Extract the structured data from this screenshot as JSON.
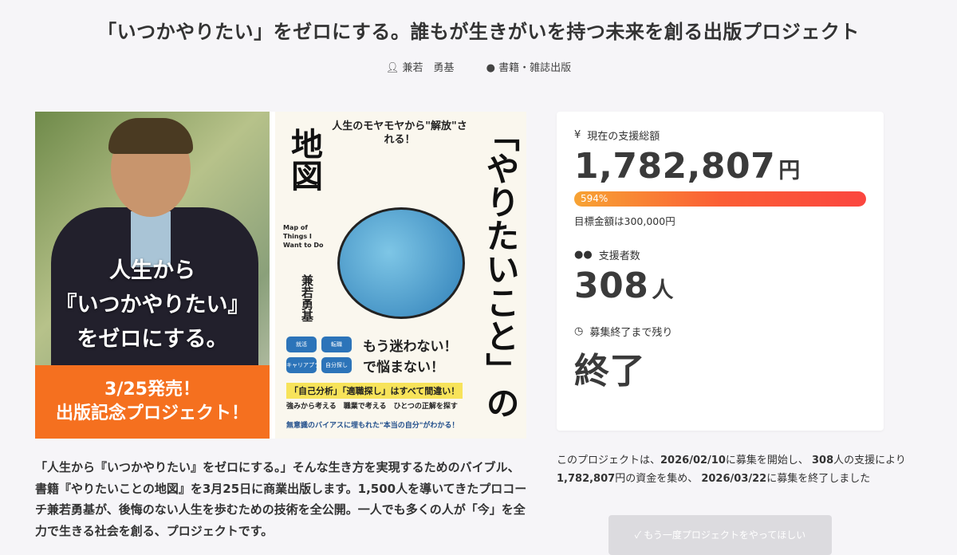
{
  "header": {
    "title": "「いつかやりたい」をゼロにする。誰もが生きがいを持つ未来を創る出版プロジェクト",
    "author": "兼若　勇基",
    "category": "書籍・雑誌出版",
    "icons": {
      "author": "user-icon",
      "category": "tag-icon"
    }
  },
  "hero": {
    "photo_text": [
      "人生から",
      "『いつかやりたい』",
      "をゼロにする。"
    ],
    "banner": [
      "3/25発売！",
      "出版記念プロジェクト！"
    ],
    "book": {
      "top": "人生のモヤモヤから\"解放\"される！",
      "map": "地図",
      "title": "「やりたいこと」の",
      "english": "Map of Things I Want to Do",
      "author": "兼若勇基",
      "tags": [
        "就活",
        "転職",
        "キャリアプラン",
        "自分探し"
      ],
      "slogan1": "もう迷わない！",
      "slogan2": "で悩まない！",
      "bar": "「自己分析」「適職探し」はすべて間違い！",
      "sub": "強みから考える　職業で考える　ひとつの正解を探す",
      "small": "無意識のバイアスに埋もれた\"本当の自分\"がわかる！"
    }
  },
  "stats": {
    "total_label": "現在の支援総額",
    "total_value": "1,782,807",
    "total_unit": "円",
    "progress_percent": 594,
    "progress_label": "594%",
    "goal": "目標金額は300,000円",
    "backers_label": "支援者数",
    "backers_value": "308",
    "backers_unit": "人",
    "remaining_label": "募集終了まで残り",
    "remaining_value": "終了",
    "icons": {
      "total": "yen-icon",
      "backers": "users-icon",
      "remaining": "clock-icon"
    }
  },
  "description": "「人生から『いつかやりたい』をゼロにする。」そんな生き方を実現するためのバイブル、書籍『やりたいことの地図』を3月25日に商業出版します。1,500人を導いてきたプロコーチ兼若勇基が、後悔のない人生を歩むための技術を全公開。一人でも多くの人が「今」を全力で生きる社会を創る、プロジェクトです。",
  "summary": {
    "p1": "このプロジェクトは、",
    "start": "2026/02/10",
    "p2": "に募集を開始し、 ",
    "backers": "308",
    "p3": "人の支援により ",
    "amount": "1,782,807",
    "p4": "円の資金を集め、 ",
    "end": "2026/03/22",
    "p5": "に募集を終了しました"
  },
  "cta": "✓ もう一度プロジェクトをやってほしい",
  "colors": {
    "banner": "#f5701f",
    "progress_start": "#f7a334",
    "progress_end": "#fb463f"
  }
}
